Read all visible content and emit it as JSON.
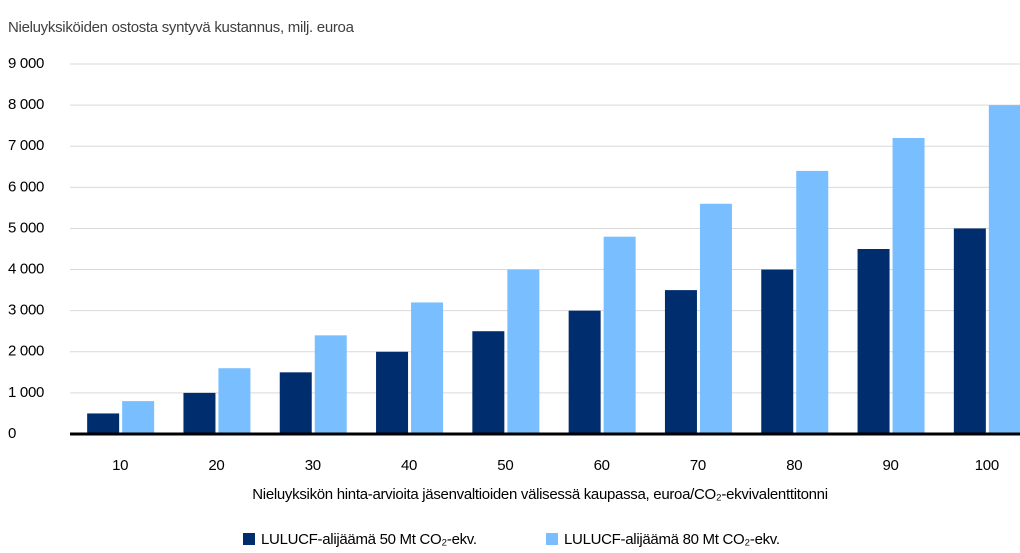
{
  "chart_data": {
    "type": "bar",
    "title": "Nieluyksiköiden ostosta syntyvä kustannus, milj. euroa",
    "xlabel": "Nieluyksikön hinta-arvioita jäsenvaltioiden välisessä kaupassa, euroa/CO₂-ekvivalenttitonni",
    "categories": [
      "10",
      "20",
      "30",
      "40",
      "50",
      "60",
      "70",
      "80",
      "90",
      "100"
    ],
    "series": [
      {
        "name": "LULUCF-alijäämä 50 Mt CO₂-ekv.",
        "color": "#002d6e",
        "values": [
          500,
          1000,
          1500,
          2000,
          2500,
          3000,
          3500,
          4000,
          4500,
          5000
        ]
      },
      {
        "name": "LULUCF-alijäämä 80 Mt CO₂-ekv.",
        "color": "#79bfff",
        "values": [
          800,
          1600,
          2400,
          3200,
          4000,
          4800,
          5600,
          6400,
          7200,
          8000
        ]
      }
    ],
    "ylim": [
      0,
      9000
    ],
    "yticks": [
      0,
      {
        "value": 1000,
        "label": "1 000"
      },
      {
        "value": 2000,
        "label": "2 000"
      },
      {
        "value": 3000,
        "label": "3 000"
      },
      {
        "value": 4000,
        "label": "4 000"
      },
      {
        "value": 5000,
        "label": "5 000"
      },
      {
        "value": 6000,
        "label": "6 000"
      },
      {
        "value": 7000,
        "label": "7 000"
      },
      {
        "value": 8000,
        "label": "8 000"
      },
      {
        "value": 9000,
        "label": "9 000"
      }
    ],
    "grid": true,
    "legend": "bottom"
  }
}
